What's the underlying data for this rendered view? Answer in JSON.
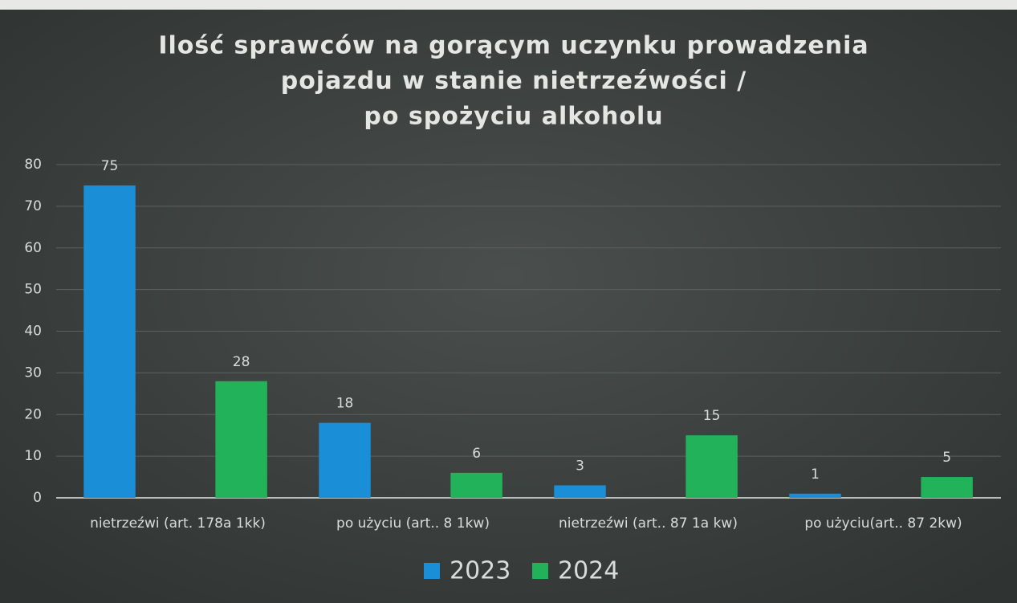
{
  "chart_data": {
    "type": "bar",
    "title": [
      "Ilość sprawców na gorącym uczynku prowadzenia",
      "pojazdu w stanie nietrzeźwości /",
      "po spożyciu alkoholu"
    ],
    "categories": [
      "nietrzeźwi (art. 178a 1kk)",
      "po użyciu (art.. 8 1kw)",
      "nietrzeźwi (art.. 87 1a kw)",
      "po użyciu(art.. 87 2kw)"
    ],
    "series": [
      {
        "name": "2023",
        "color": "#1a8fd8",
        "values": [
          75,
          18,
          3,
          1
        ]
      },
      {
        "name": "2024",
        "color": "#22b35a",
        "values": [
          28,
          6,
          15,
          5
        ]
      }
    ],
    "ylim": [
      0,
      80
    ],
    "yticks": [
      0,
      10,
      20,
      30,
      40,
      50,
      60,
      70,
      80
    ],
    "grid": true,
    "legend": "bottom"
  }
}
